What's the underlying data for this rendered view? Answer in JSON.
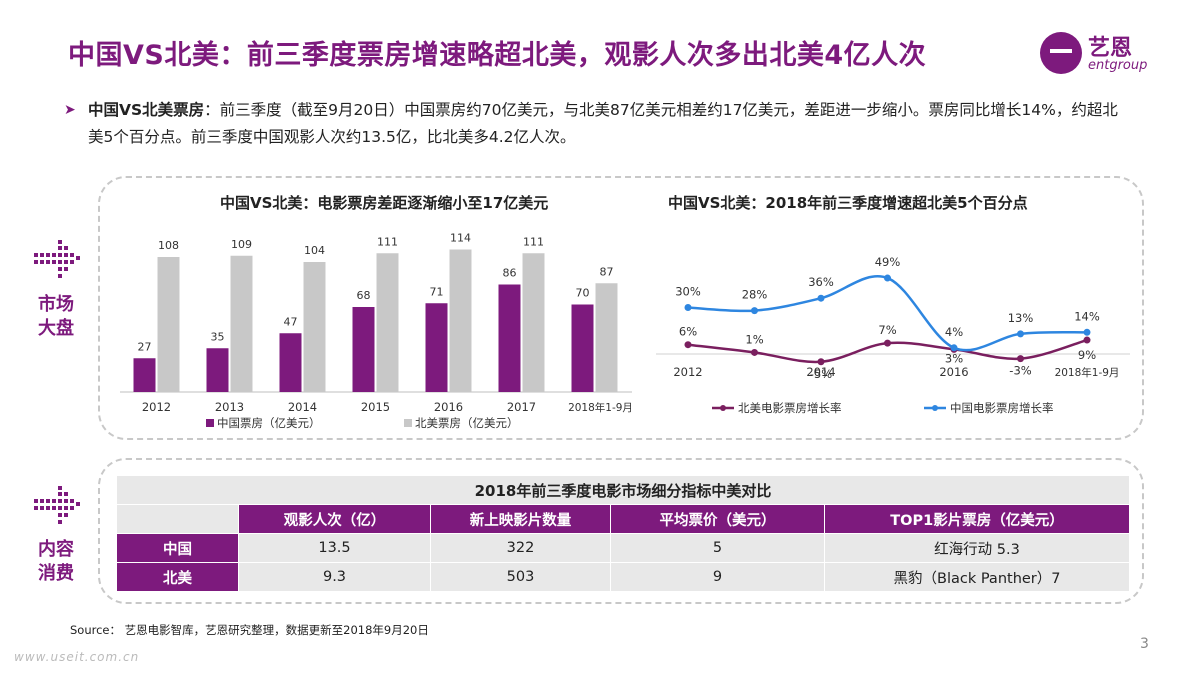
{
  "slide": {
    "title": "中国VS北美：前三季度票房增速略超北美，观影人次多出北美4亿人次",
    "logo_cn": "艺恩",
    "logo_en": "entgroup",
    "intro_bold": "中国VS北美票房",
    "intro_text": "：前三季度（截至9月20日）中国票房约70亿美元，与北美87亿美元相差约17亿美元，差距进一步缩小。票房同比增长14%，约超北美5个百分点。前三季度中国观影人次约13.5亿，比北美多4.2亿人次。",
    "side_label_market": "市场\n大盘",
    "side_label_content": "内容\n消费",
    "source": "Source： 艺恩电影智库，艺恩研究整理，数据更新至2018年9月20日",
    "watermark": "www.useit.com.cn",
    "page_number": "3"
  },
  "colors": {
    "purple": "#7d1a7d",
    "gray_bar": "#c8c8c8",
    "blue_line": "#2e86e0",
    "purple_line": "#7a1f5f"
  },
  "chart_data": [
    {
      "type": "bar",
      "title": "中国VS北美：电影票房差距逐渐缩小至17亿美元",
      "categories": [
        "2012",
        "2013",
        "2014",
        "2015",
        "2016",
        "2017",
        "2018年1-9月"
      ],
      "series": [
        {
          "name": "中国票房（亿美元）",
          "values": [
            27,
            35,
            47,
            68,
            71,
            86,
            70
          ]
        },
        {
          "name": "北美票房（亿美元）",
          "values": [
            108,
            109,
            104,
            111,
            114,
            111,
            87
          ]
        }
      ],
      "ylim": [
        0,
        120
      ],
      "legend": "bottom"
    },
    {
      "type": "line",
      "title": "中国VS北美：2018年前三季度增速超北美5个百分点",
      "categories": [
        "2012",
        "2013",
        "2014",
        "2015",
        "2016",
        "2017",
        "2018年1-9月"
      ],
      "x_tick_labels": [
        "2012",
        "",
        "2014",
        "",
        "2016",
        "",
        "2018年1-9月"
      ],
      "series": [
        {
          "name": "北美电影票房增长率",
          "values": [
            6,
            1,
            -5,
            7,
            3,
            -3,
            9
          ],
          "labels": [
            "6%",
            "1%",
            "-5%",
            "7%",
            "3%",
            "-3%",
            "9%"
          ]
        },
        {
          "name": "中国电影票房增长率",
          "values": [
            30,
            28,
            36,
            49,
            4,
            13,
            14
          ],
          "labels": [
            "30%",
            "28%",
            "36%",
            "49%",
            "4%",
            "13%",
            "14%"
          ]
        }
      ],
      "ylim": [
        -10,
        55
      ],
      "legend": "bottom"
    }
  ],
  "table": {
    "caption": "2018年前三季度电影市场细分指标中美对比",
    "headers": [
      "观影人次（亿）",
      "新上映影片数量",
      "平均票价（美元）",
      "TOP1影片票房（亿美元）"
    ],
    "rows": [
      {
        "label": "中国",
        "cells": [
          "13.5",
          "322",
          "5",
          "红海行动 5.3"
        ]
      },
      {
        "label": "北美",
        "cells": [
          "9.3",
          "503",
          "9",
          "黑豹（Black Panther）7"
        ]
      }
    ]
  }
}
